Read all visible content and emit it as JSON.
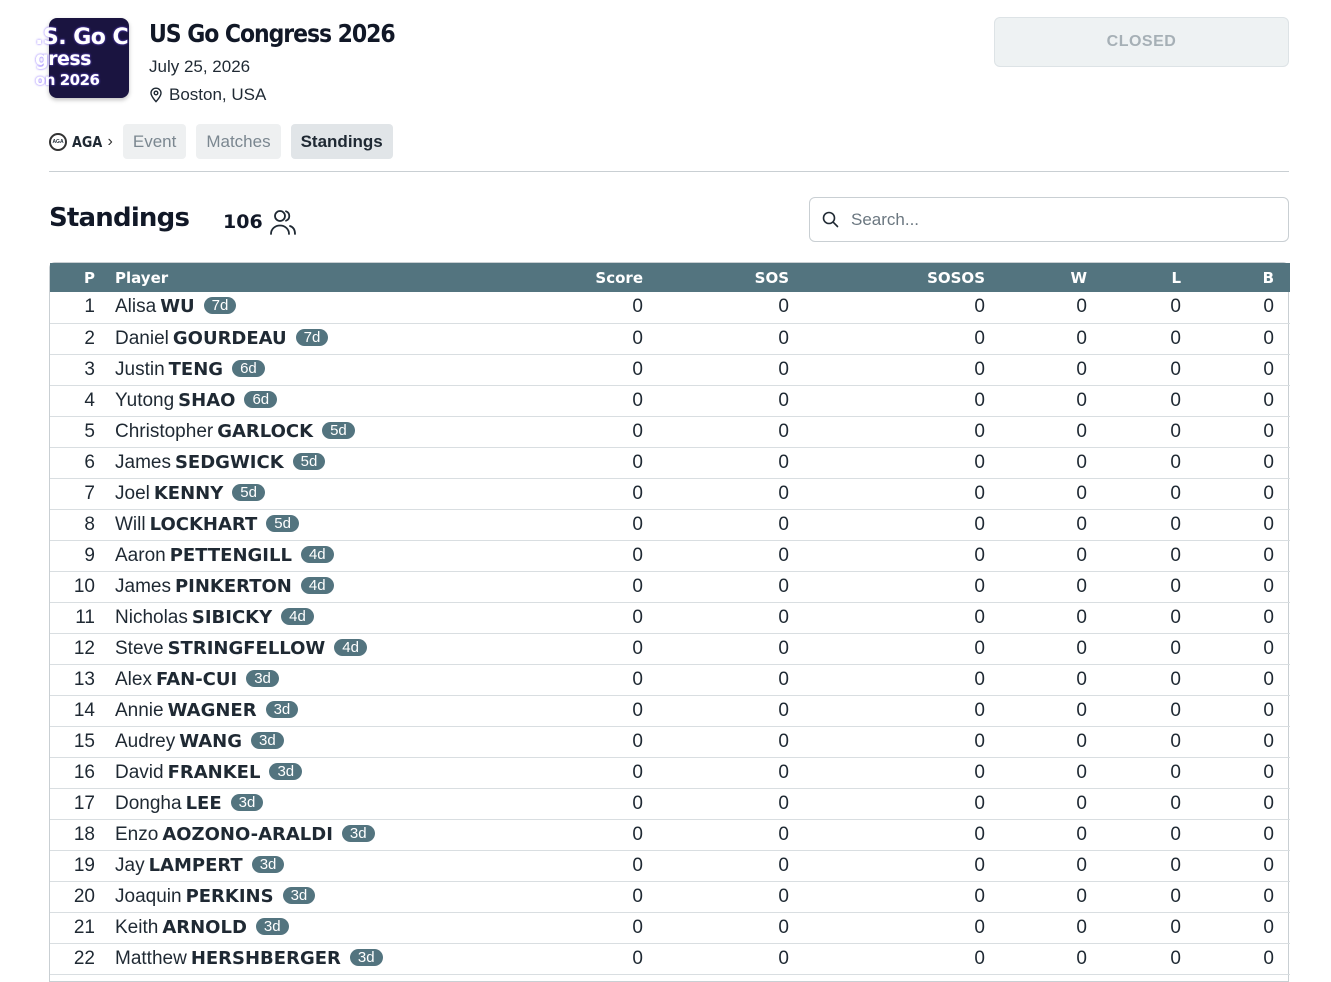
{
  "event": {
    "logo_lines": [
      ".S. Go C",
      "gress",
      "on 2026"
    ],
    "title": "US Go Congress 2026",
    "date": "July 25, 2026",
    "location": "Boston, USA",
    "status": "CLOSED"
  },
  "nav": {
    "org_label": "AGA",
    "org_icon_text": "AGA",
    "tabs": [
      {
        "label": "Event",
        "active": false
      },
      {
        "label": "Matches",
        "active": false
      },
      {
        "label": "Standings",
        "active": true
      }
    ]
  },
  "standings": {
    "title": "Standings",
    "count": "106",
    "search_placeholder": "Search...",
    "columns": [
      "P",
      "Player",
      "Score",
      "SOS",
      "SOSOS",
      "W",
      "L",
      "B"
    ],
    "rows": [
      {
        "p": "1",
        "first": "Alisa",
        "last": "WU",
        "rank": "7d",
        "score": "0",
        "sos": "0",
        "sosos": "0",
        "w": "0",
        "l": "0",
        "b": "0"
      },
      {
        "p": "2",
        "first": "Daniel",
        "last": "GOURDEAU",
        "rank": "7d",
        "score": "0",
        "sos": "0",
        "sosos": "0",
        "w": "0",
        "l": "0",
        "b": "0"
      },
      {
        "p": "3",
        "first": "Justin",
        "last": "TENG",
        "rank": "6d",
        "score": "0",
        "sos": "0",
        "sosos": "0",
        "w": "0",
        "l": "0",
        "b": "0"
      },
      {
        "p": "4",
        "first": "Yutong",
        "last": "SHAO",
        "rank": "6d",
        "score": "0",
        "sos": "0",
        "sosos": "0",
        "w": "0",
        "l": "0",
        "b": "0"
      },
      {
        "p": "5",
        "first": "Christopher",
        "last": "GARLOCK",
        "rank": "5d",
        "score": "0",
        "sos": "0",
        "sosos": "0",
        "w": "0",
        "l": "0",
        "b": "0"
      },
      {
        "p": "6",
        "first": "James",
        "last": "SEDGWICK",
        "rank": "5d",
        "score": "0",
        "sos": "0",
        "sosos": "0",
        "w": "0",
        "l": "0",
        "b": "0"
      },
      {
        "p": "7",
        "first": "Joel",
        "last": "KENNY",
        "rank": "5d",
        "score": "0",
        "sos": "0",
        "sosos": "0",
        "w": "0",
        "l": "0",
        "b": "0"
      },
      {
        "p": "8",
        "first": "Will",
        "last": "LOCKHART",
        "rank": "5d",
        "score": "0",
        "sos": "0",
        "sosos": "0",
        "w": "0",
        "l": "0",
        "b": "0"
      },
      {
        "p": "9",
        "first": "Aaron",
        "last": "PETTENGILL",
        "rank": "4d",
        "score": "0",
        "sos": "0",
        "sosos": "0",
        "w": "0",
        "l": "0",
        "b": "0"
      },
      {
        "p": "10",
        "first": "James",
        "last": "PINKERTON",
        "rank": "4d",
        "score": "0",
        "sos": "0",
        "sosos": "0",
        "w": "0",
        "l": "0",
        "b": "0"
      },
      {
        "p": "11",
        "first": "Nicholas",
        "last": "SIBICKY",
        "rank": "4d",
        "score": "0",
        "sos": "0",
        "sosos": "0",
        "w": "0",
        "l": "0",
        "b": "0"
      },
      {
        "p": "12",
        "first": "Steve",
        "last": "STRINGFELLOW",
        "rank": "4d",
        "score": "0",
        "sos": "0",
        "sosos": "0",
        "w": "0",
        "l": "0",
        "b": "0"
      },
      {
        "p": "13",
        "first": "Alex",
        "last": "FAN-CUI",
        "rank": "3d",
        "score": "0",
        "sos": "0",
        "sosos": "0",
        "w": "0",
        "l": "0",
        "b": "0"
      },
      {
        "p": "14",
        "first": "Annie",
        "last": "WAGNER",
        "rank": "3d",
        "score": "0",
        "sos": "0",
        "sosos": "0",
        "w": "0",
        "l": "0",
        "b": "0"
      },
      {
        "p": "15",
        "first": "Audrey",
        "last": "WANG",
        "rank": "3d",
        "score": "0",
        "sos": "0",
        "sosos": "0",
        "w": "0",
        "l": "0",
        "b": "0"
      },
      {
        "p": "16",
        "first": "David",
        "last": "FRANKEL",
        "rank": "3d",
        "score": "0",
        "sos": "0",
        "sosos": "0",
        "w": "0",
        "l": "0",
        "b": "0"
      },
      {
        "p": "17",
        "first": "Dongha",
        "last": "LEE",
        "rank": "3d",
        "score": "0",
        "sos": "0",
        "sosos": "0",
        "w": "0",
        "l": "0",
        "b": "0"
      },
      {
        "p": "18",
        "first": "Enzo",
        "last": "AOZONO-ARALDI",
        "rank": "3d",
        "score": "0",
        "sos": "0",
        "sosos": "0",
        "w": "0",
        "l": "0",
        "b": "0"
      },
      {
        "p": "19",
        "first": "Jay",
        "last": "LAMPERT",
        "rank": "3d",
        "score": "0",
        "sos": "0",
        "sosos": "0",
        "w": "0",
        "l": "0",
        "b": "0"
      },
      {
        "p": "20",
        "first": "Joaquin",
        "last": "PERKINS",
        "rank": "3d",
        "score": "0",
        "sos": "0",
        "sosos": "0",
        "w": "0",
        "l": "0",
        "b": "0"
      },
      {
        "p": "21",
        "first": "Keith",
        "last": "ARNOLD",
        "rank": "3d",
        "score": "0",
        "sos": "0",
        "sosos": "0",
        "w": "0",
        "l": "0",
        "b": "0"
      },
      {
        "p": "22",
        "first": "Matthew",
        "last": "HERSHBERGER",
        "rank": "3d",
        "score": "0",
        "sos": "0",
        "sosos": "0",
        "w": "0",
        "l": "0",
        "b": "0"
      }
    ]
  },
  "icons": {
    "location": "map-pin-icon",
    "participants": "users-icon",
    "search": "search-icon",
    "breadcrumb": "chevron-right-icon"
  },
  "colors": {
    "table_header": "#53747f",
    "rank_badge": "#53747f",
    "status_bg": "#eef2f3",
    "status_text": "#a6b0b6",
    "logo_bg": "#1a1440"
  }
}
